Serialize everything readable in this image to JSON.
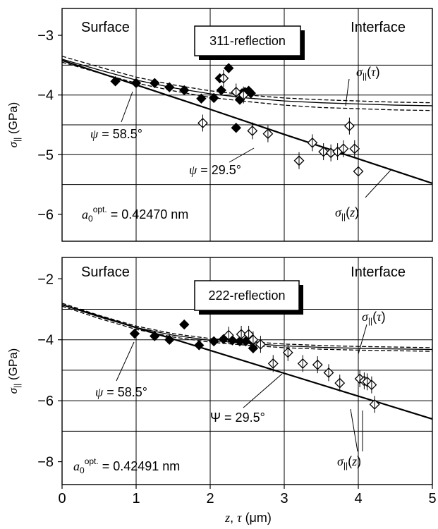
{
  "chart_data": [
    {
      "type": "scatter",
      "panel": "top",
      "box_label": "311-reflection",
      "left_label": "Surface",
      "right_label": "Interface",
      "ylabel": "σ|| (GPa)",
      "ylim": [
        -6.45,
        -2.55
      ],
      "yticks": [
        -3,
        -4,
        -5,
        -6
      ],
      "grid_y": [
        -3.5,
        -4.0,
        -4.5,
        -5.0,
        -5.5
      ],
      "xlim": [
        0,
        5
      ],
      "lattice_text": "a0opt. = 0.42470 nm",
      "series": [
        {
          "name": "ψ = 58.5°",
          "marker": "filled-diamond",
          "x": [
            0.72,
            1.0,
            1.25,
            1.45,
            1.65,
            1.88,
            2.05,
            2.13,
            2.15,
            2.25,
            2.35,
            2.4,
            2.43,
            2.47,
            2.52,
            2.55
          ],
          "y": [
            -3.77,
            -3.8,
            -3.8,
            -3.87,
            -3.92,
            -4.06,
            -4.05,
            -3.72,
            -3.92,
            -3.55,
            -4.55,
            -4.08,
            -3.97,
            -3.95,
            -3.93,
            -3.97
          ]
        },
        {
          "name": "ψ = 29.5°",
          "marker": "open-diamond",
          "x": [
            1.9,
            2.18,
            2.35,
            2.45,
            2.57,
            2.78,
            3.2,
            3.38,
            3.53,
            3.63,
            3.72,
            3.8,
            3.88,
            3.95,
            4.0
          ],
          "y": [
            -4.47,
            -3.72,
            -3.95,
            -4.0,
            -4.6,
            -4.65,
            -5.1,
            -4.8,
            -4.95,
            -4.97,
            -4.95,
            -4.9,
            -4.52,
            -4.9,
            -5.28
          ]
        },
        {
          "name": "σ||(z)",
          "line": "solid",
          "x": [
            0,
            1,
            2,
            3,
            4,
            5
          ],
          "y": [
            -3.42,
            -3.83,
            -4.24,
            -4.66,
            -5.07,
            -5.48
          ]
        },
        {
          "name": "σ||(τ)",
          "line": "solid",
          "x": [
            0,
            0.5,
            1,
            1.5,
            2,
            2.5,
            3,
            3.5,
            4,
            4.5,
            5
          ],
          "y": [
            -3.4,
            -3.58,
            -3.75,
            -3.88,
            -3.98,
            -4.05,
            -4.1,
            -4.13,
            -4.15,
            -4.17,
            -4.18
          ]
        },
        {
          "name": "σ||(τ) upper",
          "line": "dashed",
          "x": [
            0,
            0.5,
            1,
            1.5,
            2,
            2.5,
            3,
            3.5,
            4,
            4.5,
            5
          ],
          "y": [
            -3.35,
            -3.53,
            -3.7,
            -3.83,
            -3.93,
            -4.0,
            -4.05,
            -4.08,
            -4.1,
            -4.12,
            -4.13
          ]
        },
        {
          "name": "σ||(τ) lower",
          "line": "dashed",
          "x": [
            0,
            0.5,
            1,
            1.5,
            2,
            2.5,
            3,
            3.5,
            4,
            4.5,
            5
          ],
          "y": [
            -3.45,
            -3.63,
            -3.8,
            -3.93,
            -4.04,
            -4.11,
            -4.17,
            -4.21,
            -4.23,
            -4.25,
            -4.26
          ]
        }
      ]
    },
    {
      "type": "scatter",
      "panel": "bottom",
      "box_label": "222-reflection",
      "left_label": "Surface",
      "right_label": "Interface",
      "ylabel": "σ|| (GPa)",
      "ylim": [
        -8.75,
        -1.3
      ],
      "yticks": [
        -2,
        -4,
        -6,
        -8
      ],
      "grid_y": [
        -3,
        -4,
        -5,
        -6,
        -7
      ],
      "xlim": [
        0,
        5
      ],
      "xticks": [
        0,
        1,
        2,
        3,
        4,
        5
      ],
      "xlabel": "z, τ (μm)",
      "lattice_text": "a0opt. = 0.42491 nm",
      "series": [
        {
          "name": "ψ = 58.5°",
          "marker": "filled-diamond",
          "x": [
            0.98,
            1.25,
            1.45,
            1.65,
            1.85,
            2.05,
            2.18,
            2.3,
            2.4,
            2.48,
            2.55,
            2.58
          ],
          "y": [
            -3.8,
            -3.88,
            -4.0,
            -3.5,
            -4.18,
            -4.05,
            -3.98,
            -4.02,
            -4.05,
            -4.05,
            -4.02,
            -4.28
          ]
        },
        {
          "name": "ψ = 29.5°",
          "marker": "open-diamond",
          "x": [
            2.25,
            2.42,
            2.52,
            2.58,
            2.68,
            2.85,
            3.05,
            3.25,
            3.45,
            3.6,
            3.75,
            4.02,
            4.08,
            4.12,
            4.18,
            4.22
          ],
          "y": [
            -3.85,
            -3.82,
            -3.82,
            -4.0,
            -4.15,
            -4.78,
            -4.42,
            -4.78,
            -4.82,
            -5.08,
            -5.42,
            -5.28,
            -5.35,
            -5.38,
            -5.48,
            -6.12
          ]
        },
        {
          "name": "σ||(z)",
          "line": "solid",
          "x": [
            0,
            1,
            2,
            3,
            4,
            5
          ],
          "y": [
            -2.85,
            -3.6,
            -4.35,
            -5.1,
            -5.85,
            -6.6
          ]
        },
        {
          "name": "σ||(τ)",
          "line": "solid",
          "x": [
            0,
            0.5,
            1,
            1.5,
            2,
            2.5,
            3,
            3.5,
            4,
            4.5,
            5
          ],
          "y": [
            -2.85,
            -3.25,
            -3.6,
            -3.85,
            -4.02,
            -4.12,
            -4.2,
            -4.25,
            -4.28,
            -4.3,
            -4.32
          ]
        },
        {
          "name": "σ||(τ) upper",
          "line": "dashed",
          "x": [
            0,
            0.5,
            1,
            1.5,
            2,
            2.5,
            3,
            3.5,
            4,
            4.5,
            5
          ],
          "y": [
            -2.8,
            -3.2,
            -3.55,
            -3.8,
            -3.96,
            -4.06,
            -4.14,
            -4.19,
            -4.22,
            -4.24,
            -4.26
          ]
        },
        {
          "name": "σ||(τ) lower",
          "line": "dashed",
          "x": [
            0,
            0.5,
            1,
            1.5,
            2,
            2.5,
            3,
            3.5,
            4,
            4.5,
            5
          ],
          "y": [
            -2.9,
            -3.3,
            -3.66,
            -3.91,
            -4.08,
            -4.18,
            -4.26,
            -4.31,
            -4.34,
            -4.36,
            -4.38
          ]
        }
      ]
    }
  ]
}
